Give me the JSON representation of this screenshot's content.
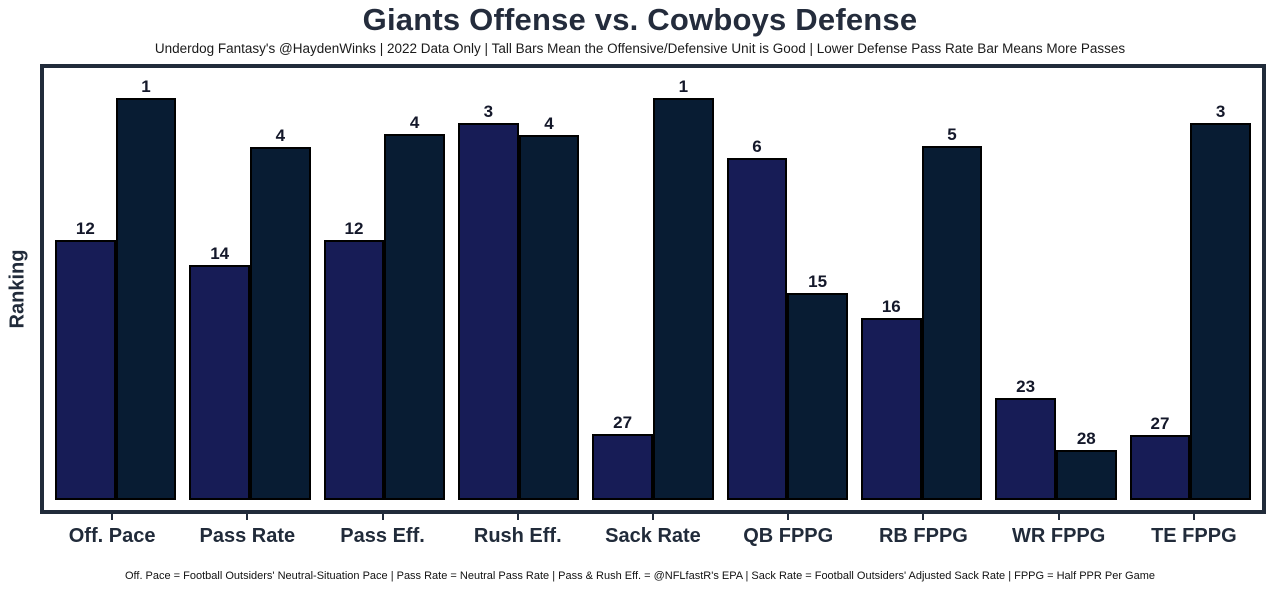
{
  "header": {
    "title": "Giants Offense vs. Cowboys Defense",
    "subtitle": "Underdog Fantasy's @HaydenWinks | 2022 Data Only | Tall Bars Mean the Offensive/Defensive Unit is Good | Lower Defense Pass Rate Bar Means More Passes"
  },
  "chart_data": {
    "type": "bar",
    "title": "Giants Offense vs. Cowboys Defense",
    "subtitle": "Underdog Fantasy's @HaydenWinks | 2022 Data Only | Tall Bars Mean the Offensive/Defensive Unit is Good | Lower Defense Pass Rate Bar Means More Passes",
    "ylabel": "Ranking",
    "xlabel": "",
    "categories": [
      "Off. Pace",
      "Pass Rate",
      "Pass Eff.",
      "Rush Eff.",
      "Sack Rate",
      "QB FPPG",
      "RB FPPG",
      "WR FPPG",
      "TE FPPG"
    ],
    "series": [
      {
        "name": "Giants Offense",
        "values": [
          12,
          14,
          12,
          3,
          27,
          6,
          16,
          23,
          27
        ],
        "heights_pct": [
          61.7,
          55.7,
          61.7,
          89.4,
          15.7,
          81.1,
          43.2,
          24.2,
          15.5
        ],
        "color": "#171c56"
      },
      {
        "name": "Cowboys Defense",
        "values": [
          1,
          4,
          4,
          4,
          1,
          15,
          5,
          28,
          3
        ],
        "heights_pct": [
          96.1,
          83.6,
          86.8,
          86.6,
          96.1,
          49.0,
          83.8,
          11.8,
          89.4
        ],
        "color": "#081c33"
      }
    ],
    "value_semantics": "values are NFL ranks (1 = best of 32); taller bar = better unit",
    "grid": false,
    "legend_position": "none",
    "bar_labels_shown": true,
    "frame_color": "#212b3a"
  },
  "footnote": "Off. Pace = Football Outsiders' Neutral-Situation Pace | Pass Rate = Neutral Pass Rate | Pass & Rush Eff. = @NFLfastR's EPA | Sack Rate = Football Outsiders' Adjusted Sack Rate | FPPG = Half PPR Per Game"
}
